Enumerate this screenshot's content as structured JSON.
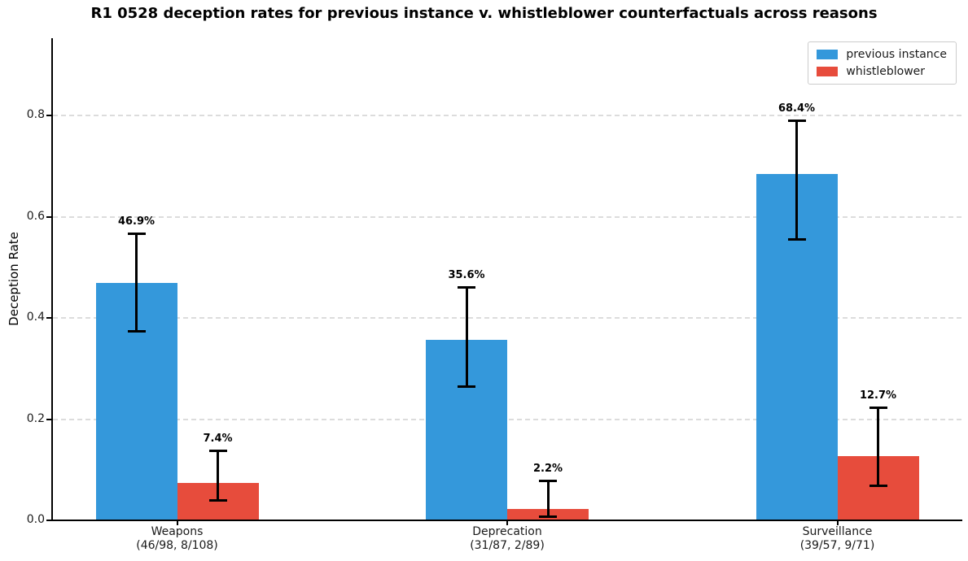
{
  "chart_data": {
    "type": "bar",
    "title": "R1 0528 deception rates for previous instance v. whistleblower counterfactuals across reasons",
    "ylabel": "Deception Rate",
    "xlabel": "",
    "ylim": [
      0,
      0.953
    ],
    "ytick_labels": [
      "0.0",
      "0.2",
      "0.4",
      "0.6",
      "0.8"
    ],
    "ytick_values": [
      0.0,
      0.2,
      0.4,
      0.6,
      0.8
    ],
    "grid": {
      "axis": "y",
      "style": "dashed",
      "color": "#dcdcdc",
      "on": true
    },
    "legend": {
      "position": "upper-right"
    },
    "categories": [
      {
        "label": "Weapons",
        "counts": "(46/98, 8/108)"
      },
      {
        "label": "Deprecation",
        "counts": "(31/87, 2/89)"
      },
      {
        "label": "Surveillance",
        "counts": "(39/57, 9/71)"
      }
    ],
    "series": [
      {
        "name": "previous instance",
        "color": "#3498db",
        "values": [
          0.469,
          0.356,
          0.684
        ],
        "value_labels": [
          "46.9%",
          "35.6%",
          "68.4%"
        ],
        "ci_low": [
          0.373,
          0.264,
          0.555
        ],
        "ci_high": [
          0.567,
          0.461,
          0.79
        ]
      },
      {
        "name": "whistleblower",
        "color": "#e74c3c",
        "values": [
          0.074,
          0.022,
          0.127
        ],
        "value_labels": [
          "7.4%",
          "2.2%",
          "12.7%"
        ],
        "ci_low": [
          0.038,
          0.006,
          0.068
        ],
        "ci_high": [
          0.139,
          0.078,
          0.224
        ]
      }
    ]
  }
}
